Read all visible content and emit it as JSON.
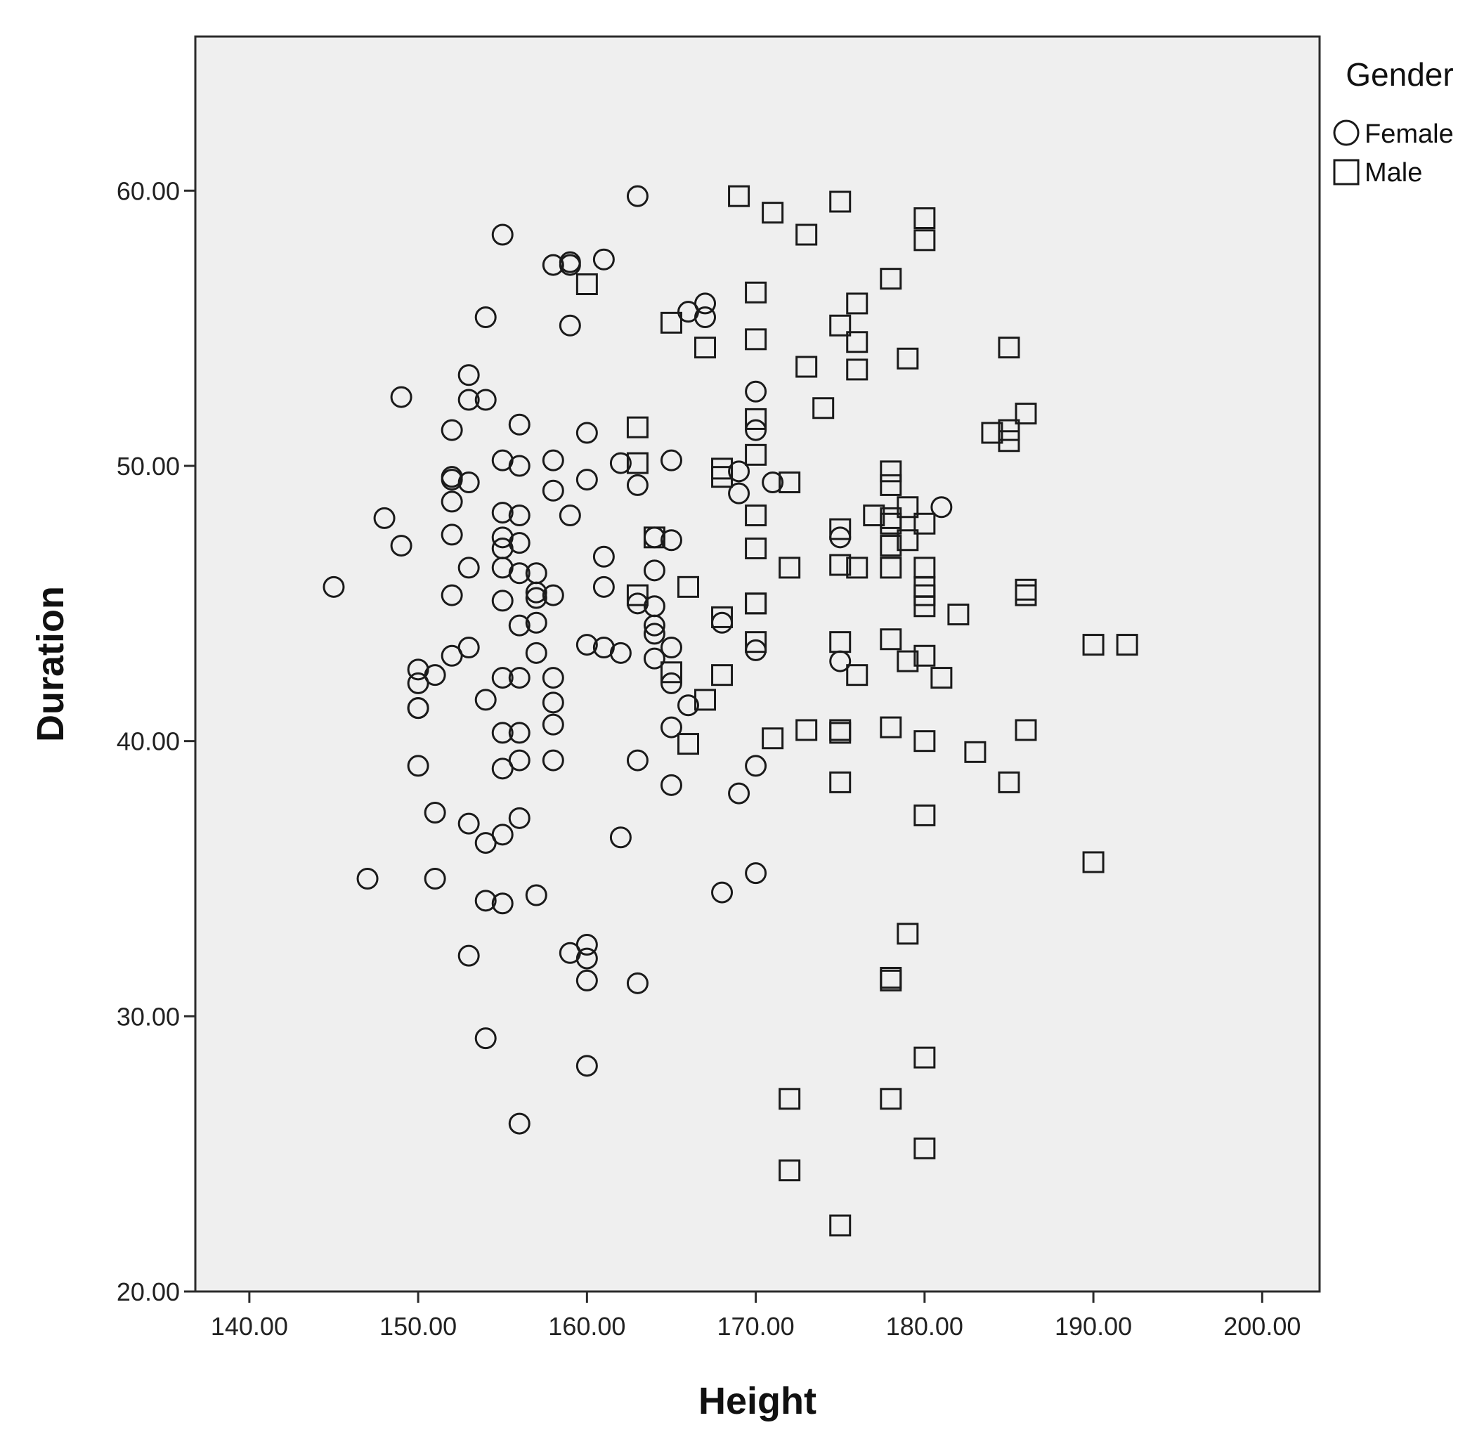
{
  "chart_data": {
    "type": "scatter",
    "title": "",
    "xlabel": "Height",
    "ylabel": "Duration",
    "xlim": [
      136.8,
      203.4
    ],
    "ylim": [
      20,
      65.6
    ],
    "x_ticks": [
      140,
      150,
      160,
      170,
      180,
      190,
      200
    ],
    "x_tick_labels": [
      "140.00",
      "150.00",
      "160.00",
      "170.00",
      "180.00",
      "190.00",
      "200.00"
    ],
    "y_ticks": [
      20,
      30,
      40,
      50,
      60
    ],
    "y_tick_labels": [
      "20.00",
      "30.00",
      "40.00",
      "50.00",
      "60.00"
    ],
    "grid": false,
    "plot_background": "#efefef",
    "marker_color": "#1a1a1a",
    "legend": {
      "title": "Gender",
      "position": "top-right"
    },
    "series": [
      {
        "name": "Female",
        "marker": "circle",
        "points": [
          [
            163,
            59.8
          ],
          [
            155,
            58.4
          ],
          [
            158,
            57.3
          ],
          [
            159,
            57.4
          ],
          [
            159,
            57.3
          ],
          [
            161,
            57.5
          ],
          [
            154,
            55.4
          ],
          [
            159,
            55.1
          ],
          [
            166,
            55.6
          ],
          [
            167,
            55.9
          ],
          [
            167,
            55.4
          ],
          [
            153,
            53.3
          ],
          [
            149,
            52.5
          ],
          [
            153,
            52.4
          ],
          [
            154,
            52.4
          ],
          [
            170,
            52.7
          ],
          [
            152,
            51.3
          ],
          [
            156,
            51.5
          ],
          [
            160,
            51.2
          ],
          [
            170,
            51.3
          ],
          [
            155,
            50.2
          ],
          [
            156,
            50.0
          ],
          [
            158,
            50.2
          ],
          [
            162,
            50.1
          ],
          [
            165,
            50.2
          ],
          [
            152,
            49.6
          ],
          [
            152,
            49.5
          ],
          [
            153,
            49.4
          ],
          [
            158,
            49.1
          ],
          [
            160,
            49.5
          ],
          [
            163,
            49.3
          ],
          [
            169,
            49.0
          ],
          [
            169,
            49.8
          ],
          [
            171,
            49.4
          ],
          [
            152,
            48.7
          ],
          [
            148,
            48.1
          ],
          [
            155,
            48.3
          ],
          [
            156,
            48.2
          ],
          [
            159,
            48.2
          ],
          [
            181,
            48.5
          ],
          [
            152,
            47.5
          ],
          [
            149,
            47.1
          ],
          [
            155,
            47.4
          ],
          [
            155,
            47.0
          ],
          [
            156,
            47.2
          ],
          [
            164,
            47.4
          ],
          [
            165,
            47.3
          ],
          [
            175,
            47.4
          ],
          [
            161,
            46.7
          ],
          [
            153,
            46.3
          ],
          [
            155,
            46.3
          ],
          [
            156,
            46.1
          ],
          [
            157,
            46.1
          ],
          [
            164,
            46.2
          ],
          [
            145,
            45.6
          ],
          [
            161,
            45.6
          ],
          [
            157,
            45.4
          ],
          [
            157,
            45.2
          ],
          [
            158,
            45.3
          ],
          [
            152,
            45.3
          ],
          [
            155,
            45.1
          ],
          [
            163,
            45.0
          ],
          [
            164,
            44.9
          ],
          [
            156,
            44.2
          ],
          [
            157,
            44.3
          ],
          [
            164,
            44.2
          ],
          [
            168,
            44.3
          ],
          [
            164,
            43.9
          ],
          [
            153,
            43.4
          ],
          [
            160,
            43.5
          ],
          [
            161,
            43.4
          ],
          [
            162,
            43.2
          ],
          [
            165,
            43.4
          ],
          [
            170,
            43.3
          ],
          [
            152,
            43.1
          ],
          [
            157,
            43.2
          ],
          [
            164,
            43.0
          ],
          [
            175,
            42.9
          ],
          [
            150,
            42.6
          ],
          [
            151,
            42.4
          ],
          [
            155,
            42.3
          ],
          [
            156,
            42.3
          ],
          [
            158,
            42.3
          ],
          [
            165,
            42.1
          ],
          [
            150,
            42.1
          ],
          [
            154,
            41.5
          ],
          [
            158,
            41.4
          ],
          [
            166,
            41.3
          ],
          [
            150,
            41.2
          ],
          [
            150,
            41.2
          ],
          [
            158,
            40.6
          ],
          [
            165,
            40.5
          ],
          [
            155,
            40.3
          ],
          [
            156,
            40.3
          ],
          [
            150,
            39.1
          ],
          [
            155,
            39.0
          ],
          [
            156,
            39.3
          ],
          [
            158,
            39.3
          ],
          [
            163,
            39.3
          ],
          [
            170,
            39.1
          ],
          [
            165,
            38.4
          ],
          [
            169,
            38.1
          ],
          [
            151,
            37.4
          ],
          [
            156,
            37.2
          ],
          [
            153,
            37.0
          ],
          [
            155,
            36.6
          ],
          [
            154,
            36.3
          ],
          [
            162,
            36.5
          ],
          [
            147,
            35.0
          ],
          [
            151,
            35.0
          ],
          [
            170,
            35.2
          ],
          [
            154,
            34.2
          ],
          [
            155,
            34.1
          ],
          [
            157,
            34.4
          ],
          [
            168,
            34.5
          ],
          [
            160,
            32.6
          ],
          [
            159,
            32.3
          ],
          [
            160,
            32.1
          ],
          [
            153,
            32.2
          ],
          [
            160,
            31.3
          ],
          [
            163,
            31.2
          ],
          [
            154,
            29.2
          ],
          [
            160,
            28.2
          ],
          [
            156,
            26.1
          ]
        ]
      },
      {
        "name": "Male",
        "marker": "square",
        "points": [
          [
            169,
            59.8
          ],
          [
            175,
            59.6
          ],
          [
            171,
            59.2
          ],
          [
            180,
            59.0
          ],
          [
            173,
            58.4
          ],
          [
            180,
            58.2
          ],
          [
            160,
            56.6
          ],
          [
            178,
            56.8
          ],
          [
            170,
            56.3
          ],
          [
            176,
            55.9
          ],
          [
            165,
            55.2
          ],
          [
            175,
            55.1
          ],
          [
            176,
            54.5
          ],
          [
            170,
            54.6
          ],
          [
            167,
            54.3
          ],
          [
            185,
            54.3
          ],
          [
            179,
            53.9
          ],
          [
            173,
            53.6
          ],
          [
            176,
            53.5
          ],
          [
            174,
            52.1
          ],
          [
            186,
            51.9
          ],
          [
            170,
            51.7
          ],
          [
            163,
            51.4
          ],
          [
            184,
            51.2
          ],
          [
            185,
            51.3
          ],
          [
            185,
            50.9
          ],
          [
            170,
            50.4
          ],
          [
            163,
            50.1
          ],
          [
            168,
            49.9
          ],
          [
            168,
            49.6
          ],
          [
            172,
            49.4
          ],
          [
            178,
            49.8
          ],
          [
            178,
            49.3
          ],
          [
            177,
            48.2
          ],
          [
            178,
            48.1
          ],
          [
            179,
            48.5
          ],
          [
            178,
            47.9
          ],
          [
            180,
            47.9
          ],
          [
            170,
            48.2
          ],
          [
            175,
            47.7
          ],
          [
            178,
            47.1
          ],
          [
            179,
            47.3
          ],
          [
            164,
            47.4
          ],
          [
            170,
            47.0
          ],
          [
            172,
            46.3
          ],
          [
            175,
            46.4
          ],
          [
            176,
            46.3
          ],
          [
            178,
            46.3
          ],
          [
            180,
            46.3
          ],
          [
            166,
            45.6
          ],
          [
            180,
            45.6
          ],
          [
            180,
            45.3
          ],
          [
            186,
            45.5
          ],
          [
            186,
            45.3
          ],
          [
            163,
            45.3
          ],
          [
            170,
            45.0
          ],
          [
            170,
            45.0
          ],
          [
            180,
            44.9
          ],
          [
            182,
            44.6
          ],
          [
            168,
            44.5
          ],
          [
            190,
            43.5
          ],
          [
            192,
            43.5
          ],
          [
            175,
            43.6
          ],
          [
            178,
            43.7
          ],
          [
            170,
            43.6
          ],
          [
            180,
            43.1
          ],
          [
            179,
            42.9
          ],
          [
            165,
            42.5
          ],
          [
            168,
            42.4
          ],
          [
            176,
            42.4
          ],
          [
            181,
            42.3
          ],
          [
            167,
            41.5
          ],
          [
            178,
            40.5
          ],
          [
            175,
            40.4
          ],
          [
            175,
            40.3
          ],
          [
            173,
            40.4
          ],
          [
            186,
            40.4
          ],
          [
            171,
            40.1
          ],
          [
            166,
            39.9
          ],
          [
            180,
            40.0
          ],
          [
            183,
            39.6
          ],
          [
            175,
            38.5
          ],
          [
            185,
            38.5
          ],
          [
            180,
            37.3
          ],
          [
            190,
            35.6
          ],
          [
            179,
            33.0
          ],
          [
            178,
            31.3
          ],
          [
            178,
            31.4
          ],
          [
            180,
            28.5
          ],
          [
            172,
            27.0
          ],
          [
            178,
            27.0
          ],
          [
            180,
            25.2
          ],
          [
            172,
            24.4
          ],
          [
            175,
            22.4
          ]
        ]
      }
    ]
  }
}
